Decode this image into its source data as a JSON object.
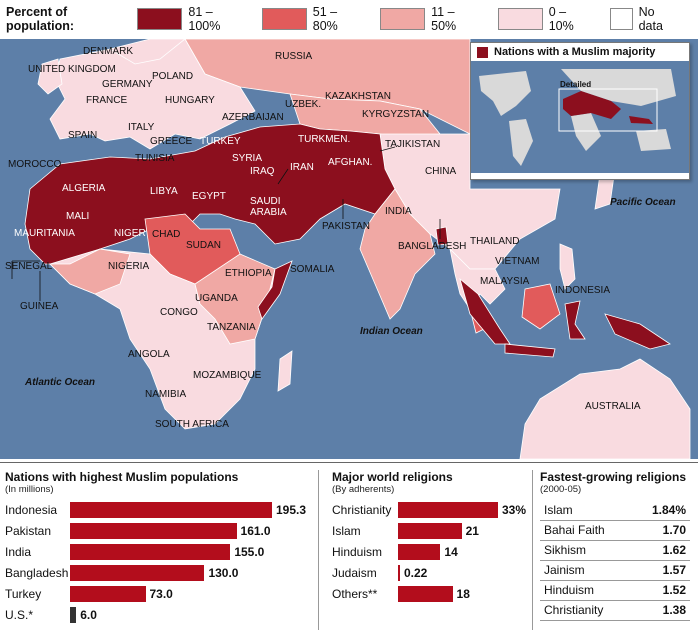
{
  "legend": {
    "title": "Percent of population:",
    "items": [
      {
        "label": "81 – 100%",
        "color": "#8c0f1e"
      },
      {
        "label": "51 – 80%",
        "color": "#e15b5b"
      },
      {
        "label": "11 – 50%",
        "color": "#f0a8a4"
      },
      {
        "label": "0 – 10%",
        "color": "#f9dbe0"
      },
      {
        "label": "No data",
        "color": "#ffffff"
      }
    ]
  },
  "map": {
    "countries": {
      "denmark": "DENMARK",
      "russia": "RUSSIA",
      "uk": "UNITED KINGDOM",
      "poland": "POLAND",
      "germany": "GERMANY",
      "france": "FRANCE",
      "hungary": "HUNGARY",
      "kazakhstan": "KAZAKHSTAN",
      "uzbek": "UZBEK.",
      "azerbaijan": "AZERBAIJAN",
      "kyrgyzstan": "KYRGYZSTAN",
      "spain": "SPAIN",
      "italy": "ITALY",
      "greece": "GREECE",
      "turkey": "TURKEY",
      "turkmen": "TURKMEN.",
      "tajikistan": "TAJIKISTAN",
      "morocco": "MOROCCO",
      "tunisia": "TUNISIA",
      "syria": "SYRIA",
      "iraq": "IRAQ",
      "iran": "IRAN",
      "afghan": "AFGHAN.",
      "china": "CHINA",
      "algeria": "ALGERIA",
      "libya": "LIBYA",
      "egypt": "EGYPT",
      "saudi": "SAUDI\nARABIA",
      "mali": "MALI",
      "mauritania": "MAURITANIA",
      "niger": "NIGER",
      "chad": "CHAD",
      "sudan": "SUDAN",
      "pakistan": "PAKISTAN",
      "india": "INDIA",
      "bangladesh": "BANGLADESH",
      "senegal": "SENEGAL",
      "nigeria": "NIGERIA",
      "ethiopia": "ETHIOPIA",
      "somalia": "SOMALIA",
      "thailand": "THAILAND",
      "vietnam": "VIETNAM",
      "guinea": "GUINEA",
      "uganda": "UGANDA",
      "malaysia": "MALAYSIA",
      "congo": "CONGO",
      "indonesia": "INDONESIA",
      "tanzania": "TANZANIA",
      "angola": "ANGOLA",
      "mozambique": "MOZAMBIQUE",
      "namibia": "NAMIBIA",
      "south_africa": "SOUTH AFRICA",
      "australia": "AUSTRALIA"
    },
    "oceans": {
      "pacific": "Pacific Ocean",
      "indian": "Indian Ocean",
      "atlantic": "Atlantic Ocean"
    },
    "colors": {
      "water": "#5d7fa8",
      "border": "#ffffff"
    }
  },
  "inset": {
    "title": "Nations with a Muslim majority",
    "detailed": "Detailed"
  },
  "muslim_pops": {
    "title": "Nations with highest Muslim populations",
    "subtitle": "(In millions)",
    "rows": [
      {
        "name": "Indonesia",
        "value": 195.3,
        "label": "195.3"
      },
      {
        "name": "Pakistan",
        "value": 161.0,
        "label": "161.0"
      },
      {
        "name": "India",
        "value": 155.0,
        "label": "155.0"
      },
      {
        "name": "Bangladesh",
        "value": 130.0,
        "label": "130.0"
      },
      {
        "name": "Turkey",
        "value": 73.0,
        "label": "73.0"
      },
      {
        "name": "U.S.*",
        "value": 6.0,
        "label": "6.0"
      }
    ]
  },
  "religions": {
    "title": "Major world religions",
    "subtitle": "(By adherents)",
    "rows": [
      {
        "name": "Christianity",
        "value": 33,
        "label": "33%"
      },
      {
        "name": "Islam",
        "value": 21,
        "label": "21"
      },
      {
        "name": "Hinduism",
        "value": 14,
        "label": "14"
      },
      {
        "name": "Judaism",
        "value": 0.22,
        "label": "0.22"
      },
      {
        "name": "Others**",
        "value": 18,
        "label": "18"
      }
    ]
  },
  "fastest": {
    "title": "Fastest-growing religions",
    "subtitle": "(2000-05)",
    "rows": [
      {
        "name": "Islam",
        "value": "1.84%"
      },
      {
        "name": "Bahai Faith",
        "value": "1.70"
      },
      {
        "name": "Sikhism",
        "value": "1.62"
      },
      {
        "name": "Jainism",
        "value": "1.57"
      },
      {
        "name": "Hinduism",
        "value": "1.52"
      },
      {
        "name": "Christianity",
        "value": "1.38"
      }
    ]
  }
}
